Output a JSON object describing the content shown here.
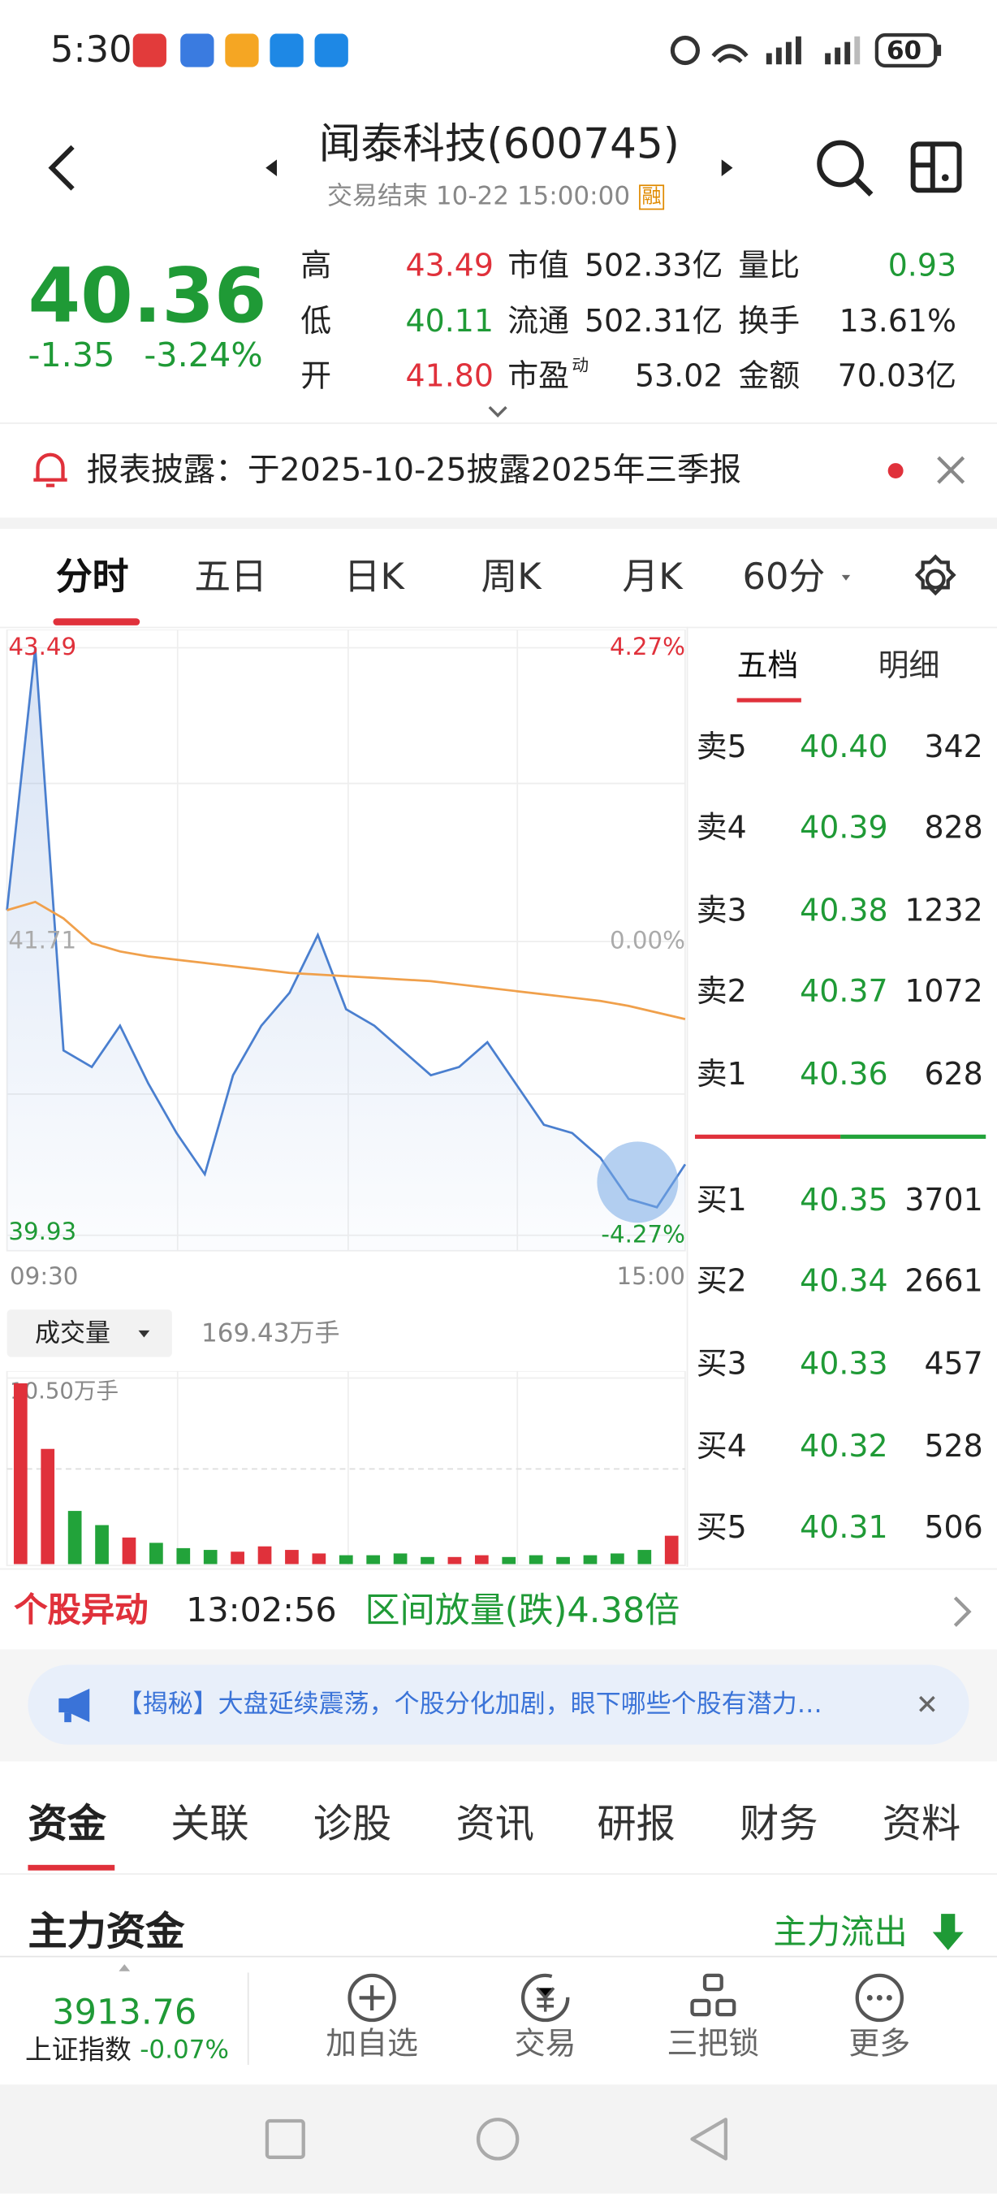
{
  "page": {
    "status": {
      "time": "5:30",
      "battery": "60"
    },
    "header": {
      "title": "闻泰科技(600745)",
      "subtitle": "交易结束 10-22 15:00:00",
      "badge": "融"
    },
    "quote": {
      "price": "40.36",
      "change": "-1.35",
      "pct": "-3.24%",
      "stats": [
        {
          "label": "高",
          "value": "43.49"
        },
        {
          "label": "市值",
          "value": "502.33亿"
        },
        {
          "label": "量比",
          "value": "0.93"
        },
        {
          "label": "低",
          "value": "40.11"
        },
        {
          "label": "流通",
          "value": "502.31亿"
        },
        {
          "label": "换手",
          "value": "13.61%"
        },
        {
          "label": "开",
          "value": "41.80"
        },
        {
          "label": "市盈",
          "sup": "动",
          "value": "53.02"
        },
        {
          "label": "金额",
          "value": "70.03亿"
        }
      ]
    },
    "notice": "报表披露：于2025-10-25披露2025年三季报",
    "tabs": [
      "分时",
      "五日",
      "日K",
      "周K",
      "月K",
      "60分"
    ],
    "volume_selector": "成交量",
    "volume_total": "169.43万手",
    "order_book": {
      "tabs": [
        "五档",
        "明细"
      ],
      "sells": [
        [
          "卖5",
          "40.40",
          "342"
        ],
        [
          "卖4",
          "40.39",
          "828"
        ],
        [
          "卖3",
          "40.38",
          "1232"
        ],
        [
          "卖2",
          "40.37",
          "1072"
        ],
        [
          "卖1",
          "40.36",
          "628"
        ]
      ],
      "buys": [
        [
          "买1",
          "40.35",
          "3701"
        ],
        [
          "买2",
          "40.34",
          "2661"
        ],
        [
          "买3",
          "40.33",
          "457"
        ],
        [
          "买4",
          "40.32",
          "528"
        ],
        [
          "买5",
          "40.31",
          "506"
        ]
      ]
    },
    "alert": {
      "title": "个股异动",
      "time": "13:02:56",
      "text": "区间放量(跌)4.38倍"
    },
    "banner": "【揭秘】大盘延续震荡，个股分化加剧，眼下哪些个股有潜力…",
    "sections": [
      "资金",
      "关联",
      "诊股",
      "资讯",
      "研报",
      "财务",
      "资料"
    ],
    "fund": {
      "title": "主力资金",
      "status": "主力流出"
    },
    "bottom": {
      "index_value": "3913.76",
      "index_name": "上证指数",
      "index_change": "-0.07%",
      "buttons": [
        "加自选",
        "交易",
        "三把锁",
        "更多"
      ]
    }
  },
  "chart_data": [
    {
      "type": "line",
      "categories": [
        "09:30",
        null,
        null,
        null,
        null,
        null,
        null,
        null,
        null,
        null,
        null,
        null,
        null,
        null,
        null,
        null,
        null,
        null,
        null,
        null,
        null,
        null,
        null,
        null,
        "15:00"
      ],
      "series": [
        {
          "color": "#4a7fcf",
          "values": [
            41.9,
            43.49,
            41.05,
            40.95,
            41.2,
            40.85,
            40.55,
            40.3,
            40.9,
            41.2,
            41.4,
            41.75,
            41.3,
            41.2,
            41.05,
            40.9,
            40.95,
            41.1,
            40.85,
            40.6,
            40.55,
            40.4,
            40.15,
            40.1,
            40.36
          ]
        },
        {
          "color": "#f0a04b",
          "values": [
            41.9,
            41.95,
            41.85,
            41.7,
            41.65,
            41.62,
            41.6,
            41.58,
            41.56,
            41.54,
            41.52,
            41.51,
            41.5,
            41.49,
            41.48,
            41.47,
            41.45,
            41.43,
            41.41,
            41.39,
            41.37,
            41.35,
            41.32,
            41.28,
            41.24
          ]
        }
      ],
      "ylim": [
        39.93,
        43.49
      ],
      "yticks": [
        43.49,
        41.71,
        39.93
      ],
      "y2lim": [
        -4.27,
        4.27
      ],
      "y2ticks": [
        {
          "value": 4.27,
          "label": "4.27%"
        },
        {
          "value": 0,
          "label": "0.00%"
        },
        {
          "value": -4.27,
          "label": "-4.27%"
        }
      ],
      "grid": true
    },
    {
      "type": "bar",
      "categories": [
        null,
        null,
        null,
        null,
        null,
        null,
        null,
        null,
        null,
        null,
        null,
        null,
        null,
        null,
        null,
        null,
        null,
        null,
        null,
        null,
        null,
        null,
        null,
        null,
        null
      ],
      "values": [
        10.2,
        6.5,
        3.0,
        2.2,
        1.5,
        1.2,
        0.9,
        0.8,
        0.7,
        1.0,
        0.8,
        0.6,
        0.5,
        0.5,
        0.6,
        0.4,
        0.4,
        0.5,
        0.4,
        0.5,
        0.4,
        0.5,
        0.6,
        0.8,
        1.6
      ],
      "up_color": "#e0313b",
      "down_color": "#22a33a",
      "ylim": [
        0,
        10.5
      ],
      "yticks": [
        {
          "value": 10.5,
          "label": "10.50万手"
        }
      ]
    }
  ]
}
